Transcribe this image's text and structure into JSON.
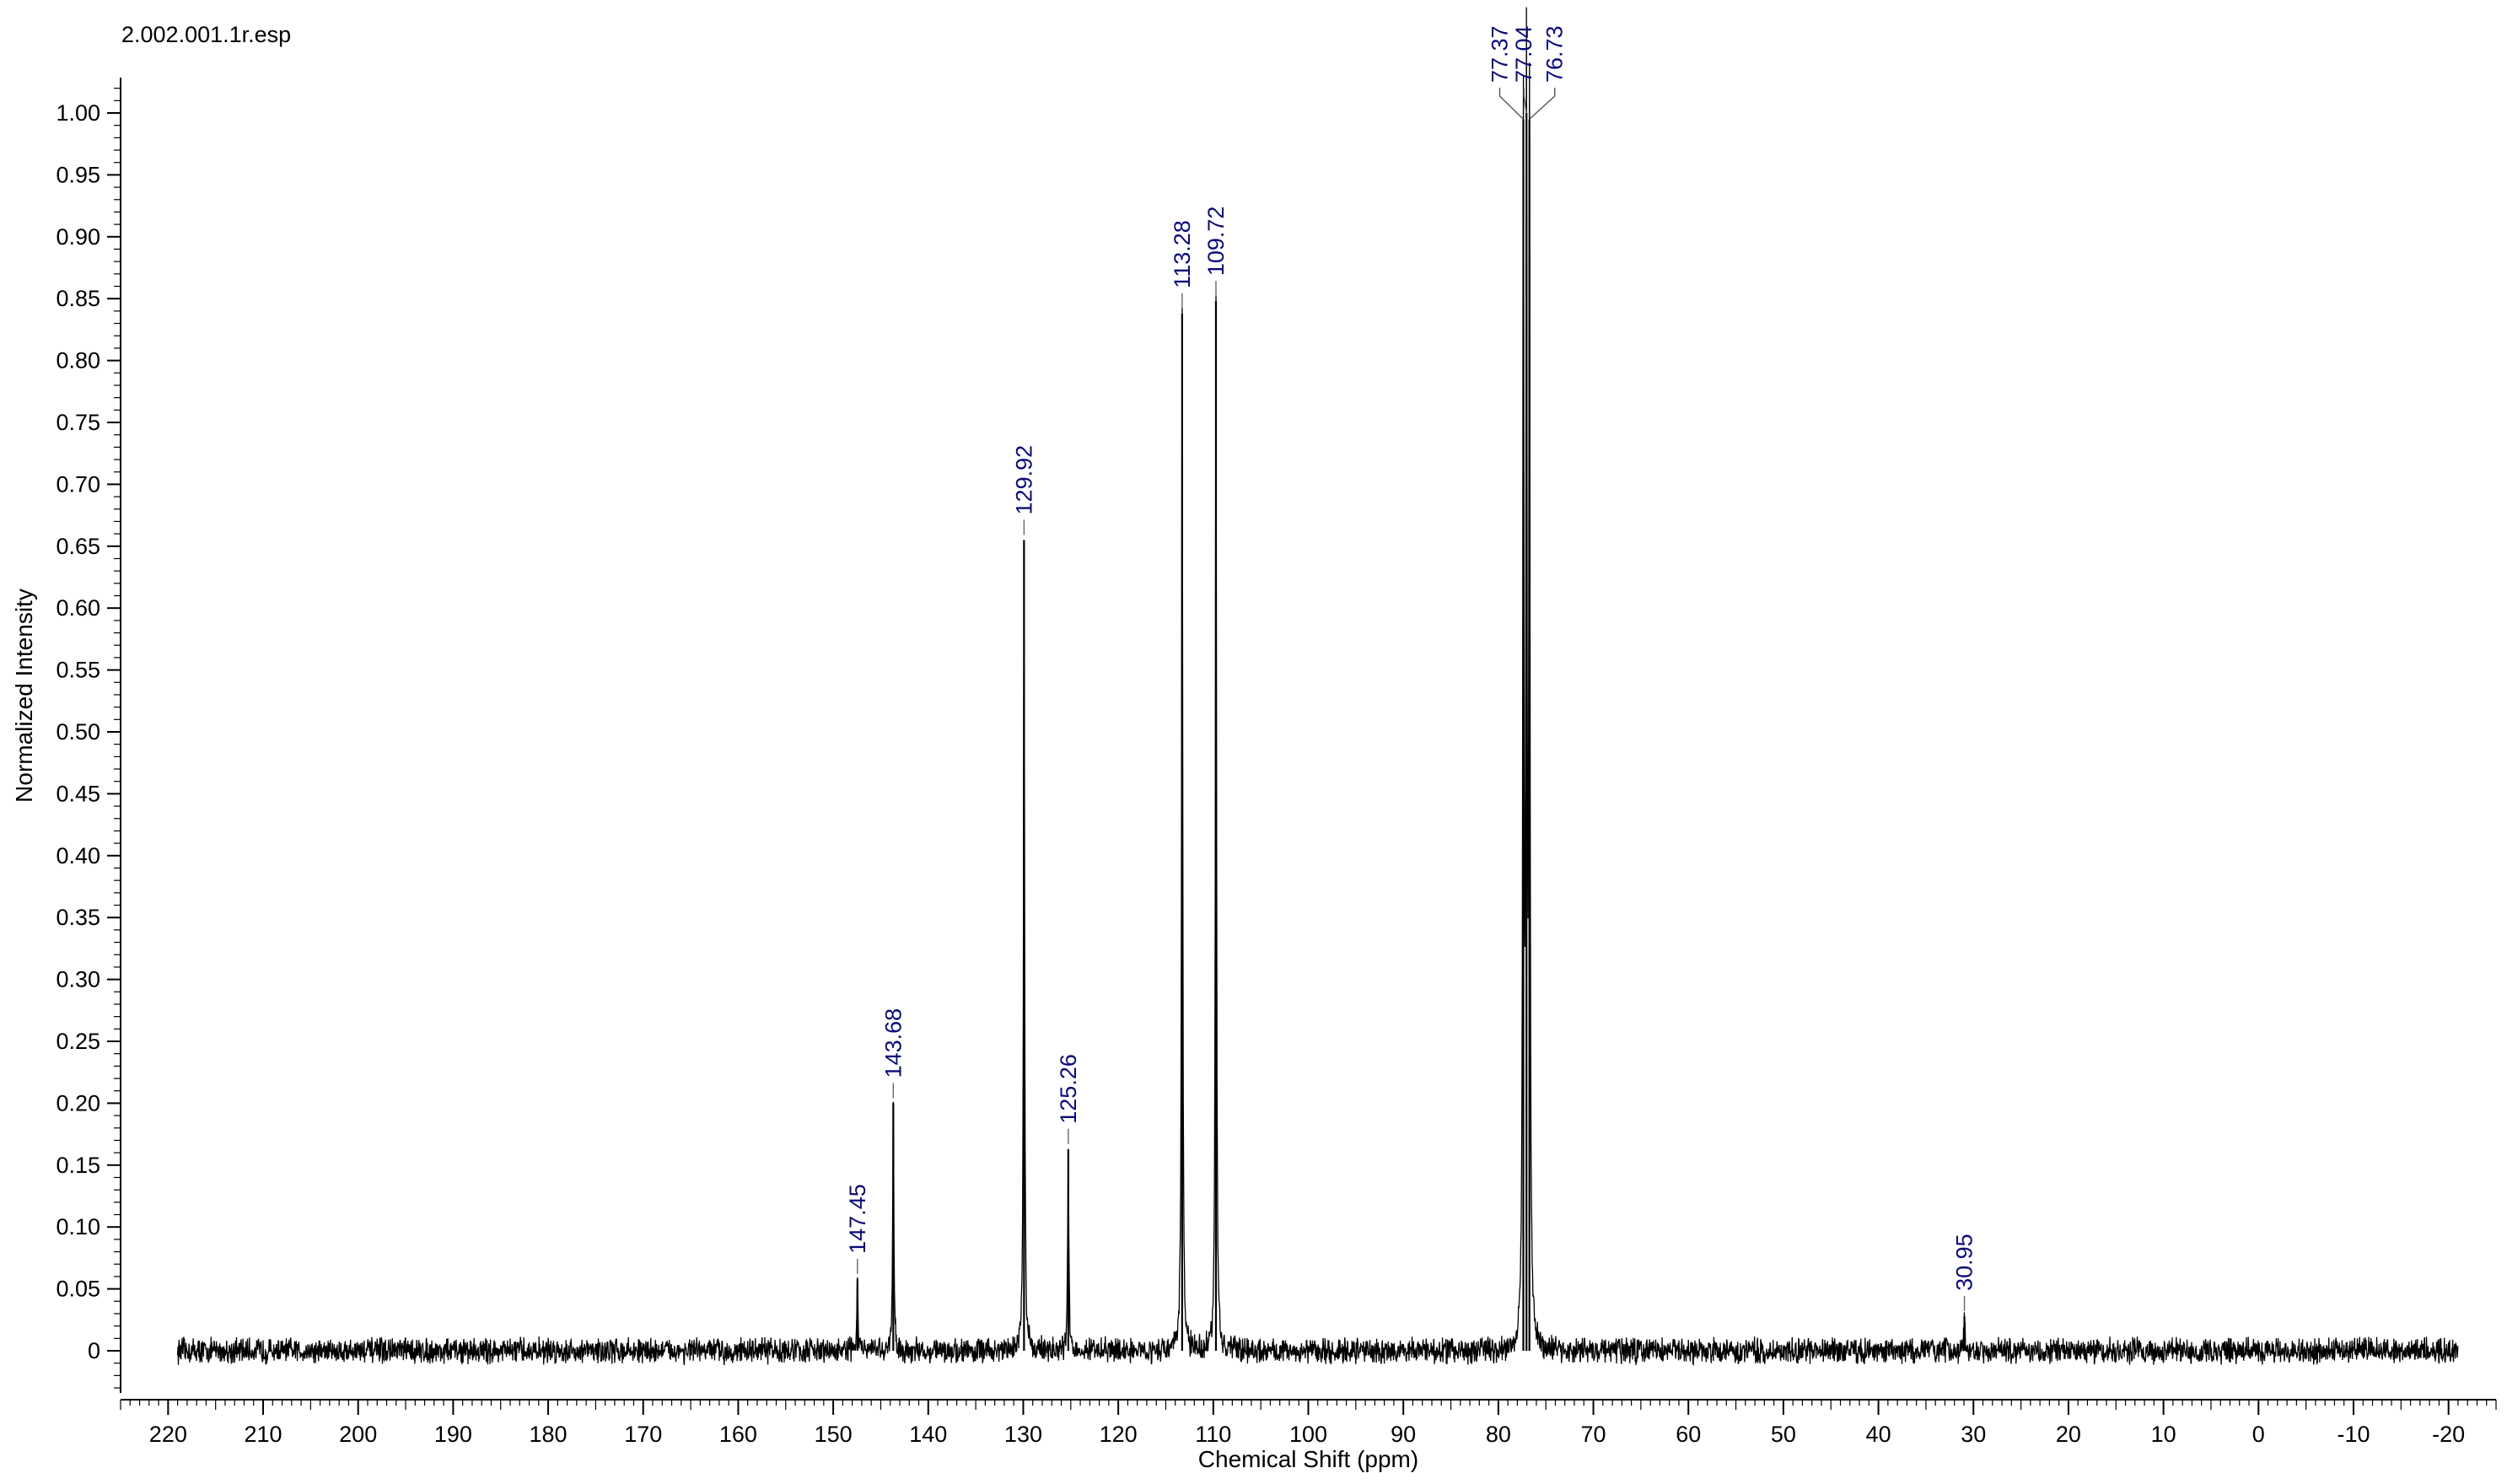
{
  "chart_data": {
    "type": "line",
    "title": "2.002.001.1r.esp",
    "xlabel": "Chemical Shift (ppm)",
    "ylabel": "Normalized Intensity",
    "xlim": [
      225,
      -25
    ],
    "ylim": [
      -0.04,
      1.07
    ],
    "x_reversed": true,
    "data_range": [
      219,
      -21
    ],
    "x_ticks": [
      220,
      210,
      200,
      190,
      180,
      170,
      160,
      150,
      140,
      130,
      120,
      110,
      100,
      90,
      80,
      70,
      60,
      50,
      40,
      30,
      20,
      10,
      0,
      -10,
      -20
    ],
    "x_tick_labels": [
      "220",
      "210",
      "200",
      "190",
      "180",
      "170",
      "160",
      "150",
      "140",
      "130",
      "120",
      "110",
      "100",
      "90",
      "80",
      "70",
      "60",
      "50",
      "40",
      "30",
      "20",
      "10",
      "0",
      "-10",
      "-20"
    ],
    "y_ticks": [
      0,
      0.05,
      0.1,
      0.15,
      0.2,
      0.25,
      0.3,
      0.35,
      0.4,
      0.45,
      0.5,
      0.55,
      0.6,
      0.65,
      0.7,
      0.75,
      0.8,
      0.85,
      0.9,
      0.95,
      1.0
    ],
    "y_tick_labels": [
      "0",
      "0.05",
      "0.10",
      "0.15",
      "0.20",
      "0.25",
      "0.30",
      "0.35",
      "0.40",
      "0.45",
      "0.50",
      "0.55",
      "0.60",
      "0.65",
      "0.70",
      "0.75",
      "0.80",
      "0.85",
      "0.90",
      "0.95",
      "1.00"
    ],
    "grid": false,
    "line_color": "#000000",
    "label_color": "#0a0a78",
    "peaks": [
      {
        "label": "147.45",
        "x": 147.45,
        "y": 0.058
      },
      {
        "label": "143.68",
        "x": 143.68,
        "y": 0.2
      },
      {
        "label": "129.92",
        "x": 129.92,
        "y": 0.655
      },
      {
        "label": "125.26",
        "x": 125.26,
        "y": 0.163
      },
      {
        "label": "113.28",
        "x": 113.28,
        "y": 0.838
      },
      {
        "label": "109.72",
        "x": 109.72,
        "y": 0.848
      },
      {
        "label": "77.37",
        "x": 77.37,
        "y": 0.995
      },
      {
        "label": "77.04",
        "x": 77.04,
        "y": 1.0
      },
      {
        "label": "76.73",
        "x": 76.73,
        "y": 0.995
      },
      {
        "label": "30.95",
        "x": 30.95,
        "y": 0.028
      }
    ]
  }
}
